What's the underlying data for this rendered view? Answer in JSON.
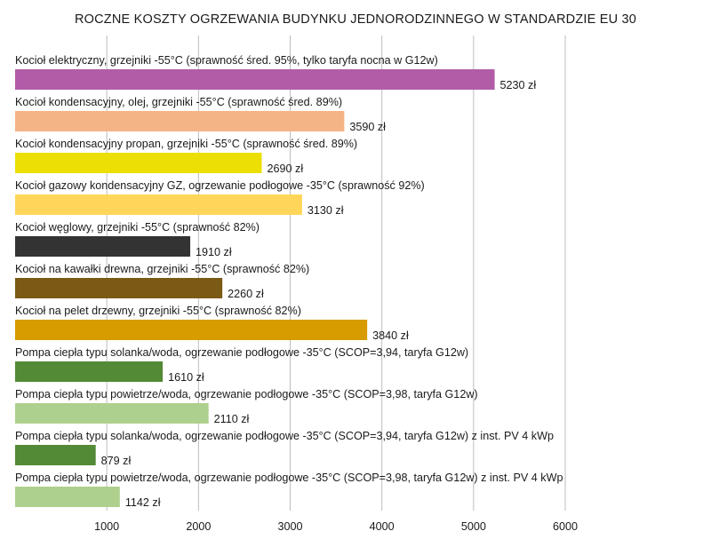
{
  "chart_data": {
    "type": "bar",
    "orientation": "horizontal",
    "title": "ROCZNE KOSZTY OGRZEWANIA BUDYNKU JEDNORODZINNEGO W STANDARDZIE EU 30",
    "xlabel": "",
    "ylabel": "",
    "xlim": [
      0,
      6000
    ],
    "xticks": [
      1000,
      2000,
      3000,
      4000,
      5000,
      6000
    ],
    "grid": true,
    "categories": [
      "Kocioł elektryczny, grzejniki -55°C (sprawność śred. 95%, tylko taryfa nocna w G12w)",
      "Kocioł kondensacyjny, olej, grzejniki -55°C (sprawność śred. 89%)",
      "Kocioł kondensacyjny propan, grzejniki -55°C (sprawność śred. 89%)",
      "Kocioł gazowy kondensacyjny GZ, ogrzewanie podłogowe -35°C (sprawność 92%)",
      "Kocioł węglowy, grzejniki -55°C (sprawność 82%)",
      "Kocioł na kawałki drewna, grzejniki -55°C (sprawność 82%)",
      "Kocioł na pelet drzewny, grzejniki -55°C (sprawność 82%)",
      "Pompa ciepła typu solanka/woda, ogrzewanie podłogowe -35°C (SCOP=3,94, taryfa G12w)",
      "Pompa ciepła typu powietrze/woda, ogrzewanie podłogowe -35°C (SCOP=3,98, taryfa G12w)",
      "Pompa ciepła typu solanka/woda, ogrzewanie podłogowe -35°C (SCOP=3,94, taryfa G12w) z inst. PV 4 kWp",
      "Pompa ciepła typu powietrze/woda, ogrzewanie podłogowe -35°C (SCOP=3,98, taryfa G12w) z inst. PV 4 kWp"
    ],
    "values": [
      5230,
      3590,
      2690,
      3130,
      1910,
      2260,
      3840,
      1610,
      2110,
      879,
      1142
    ],
    "value_labels": [
      "5230 zł",
      "3590 zł",
      "2690 zł",
      "3130 zł",
      "1910 zł",
      "2260 zł",
      "3840 zł",
      "1610 zł",
      "2110 zł",
      "879 zł",
      "1142 zł"
    ],
    "colors": [
      "#b25ca8",
      "#f5b486",
      "#ecdf06",
      "#ffd65a",
      "#333333",
      "#7a5a14",
      "#d69c00",
      "#538a35",
      "#aed08e",
      "#538a35",
      "#aed08e"
    ]
  }
}
